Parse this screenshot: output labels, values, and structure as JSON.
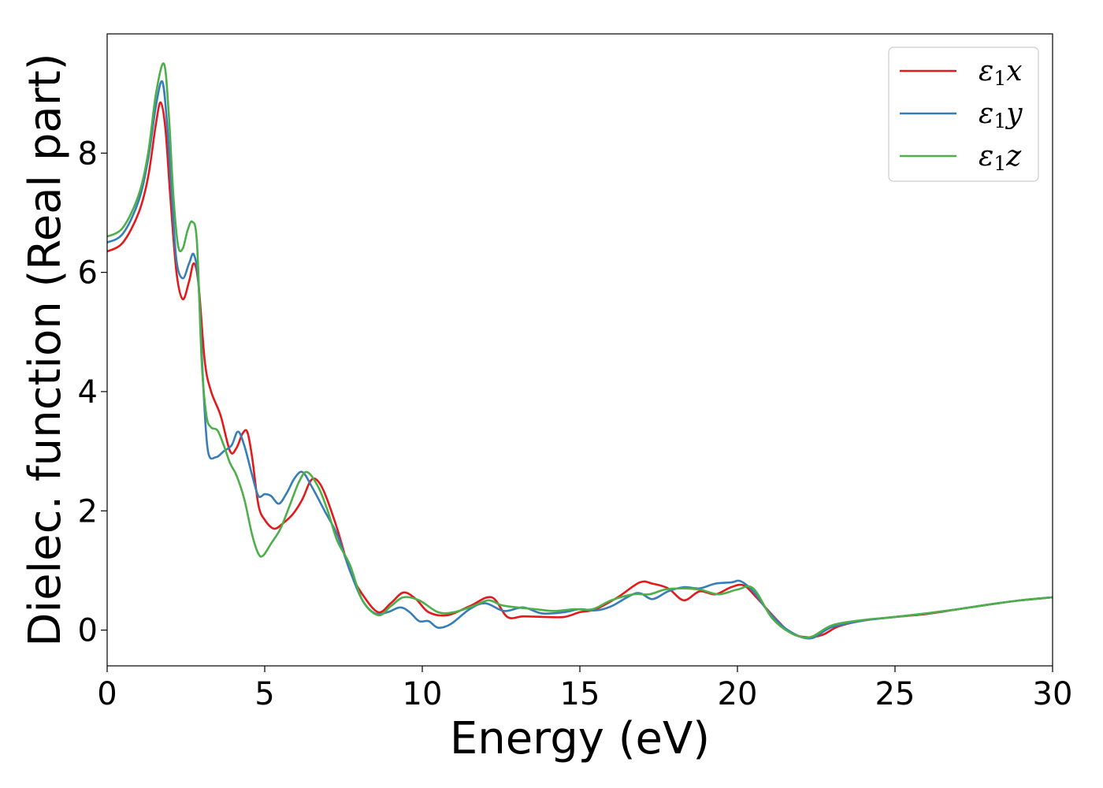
{
  "chart_data": {
    "type": "line",
    "xlabel": "Energy (eV)",
    "ylabel": "Dielec. function (Real part)",
    "xlim": [
      0,
      30
    ],
    "ylim": [
      -0.6,
      10.0
    ],
    "xticks": [
      0,
      5,
      10,
      15,
      20,
      25,
      30
    ],
    "yticks": [
      0,
      2,
      4,
      6,
      8
    ],
    "grid": false,
    "legend_position": "top-right",
    "series": [
      {
        "name": "ε1x",
        "legend_main": "ε",
        "legend_sub": "1",
        "legend_suffix": "x",
        "color": "#e31a1c",
        "x": [
          0,
          0.5,
          1.0,
          1.3,
          1.55,
          1.7,
          1.85,
          2.0,
          2.2,
          2.4,
          2.6,
          2.75,
          2.9,
          3.1,
          3.3,
          3.6,
          3.9,
          4.1,
          4.3,
          4.45,
          4.6,
          4.8,
          5.0,
          5.3,
          5.6,
          5.9,
          6.2,
          6.45,
          6.65,
          6.9,
          7.3,
          7.7,
          8.1,
          8.6,
          9.0,
          9.4,
          9.8,
          10.2,
          10.8,
          11.5,
          12.2,
          12.7,
          13.2,
          13.9,
          14.5,
          15.0,
          15.5,
          16.2,
          16.9,
          17.3,
          17.8,
          18.3,
          18.8,
          19.3,
          19.8,
          20.2,
          20.6,
          21.2,
          21.7,
          22.2,
          22.7,
          23.2,
          24.0,
          25.0,
          26.0,
          27.0,
          28.0,
          29.0,
          30.0
        ],
        "y": [
          6.35,
          6.5,
          7.0,
          7.6,
          8.5,
          8.85,
          8.4,
          7.3,
          6.0,
          5.55,
          5.85,
          6.15,
          5.8,
          4.5,
          4.0,
          3.6,
          3.0,
          3.05,
          3.3,
          3.32,
          2.9,
          2.1,
          1.85,
          1.7,
          1.8,
          1.95,
          2.2,
          2.5,
          2.52,
          2.3,
          1.7,
          1.0,
          0.6,
          0.3,
          0.45,
          0.63,
          0.52,
          0.3,
          0.25,
          0.4,
          0.55,
          0.22,
          0.23,
          0.22,
          0.22,
          0.3,
          0.35,
          0.55,
          0.8,
          0.78,
          0.7,
          0.5,
          0.65,
          0.6,
          0.72,
          0.75,
          0.55,
          0.2,
          -0.05,
          -0.12,
          -0.08,
          0.06,
          0.16,
          0.22,
          0.27,
          0.35,
          0.43,
          0.5,
          0.55
        ]
      },
      {
        "name": "ε1y",
        "legend_main": "ε",
        "legend_sub": "1",
        "legend_suffix": "y",
        "color": "#377eb8",
        "x": [
          0,
          0.5,
          1.0,
          1.3,
          1.55,
          1.75,
          1.9,
          2.05,
          2.2,
          2.4,
          2.6,
          2.75,
          2.9,
          3.05,
          3.2,
          3.45,
          3.7,
          3.95,
          4.15,
          4.35,
          4.6,
          4.8,
          5.0,
          5.2,
          5.45,
          5.7,
          5.95,
          6.2,
          6.5,
          6.9,
          7.3,
          7.7,
          8.1,
          8.5,
          8.9,
          9.3,
          9.6,
          9.9,
          10.2,
          10.5,
          10.9,
          11.5,
          12.0,
          12.6,
          13.2,
          13.8,
          14.5,
          15.0,
          15.5,
          16.0,
          16.8,
          17.3,
          17.8,
          18.3,
          18.8,
          19.3,
          19.8,
          20.1,
          20.5,
          21.0,
          21.6,
          22.3,
          23.0,
          24.0,
          25.0,
          26.0,
          27.0,
          28.0,
          29.0,
          30.0
        ],
        "y": [
          6.5,
          6.65,
          7.2,
          7.9,
          8.8,
          9.2,
          8.5,
          7.3,
          6.2,
          5.9,
          6.15,
          6.3,
          5.8,
          4.1,
          3.0,
          2.9,
          3.0,
          3.1,
          3.33,
          3.1,
          2.6,
          2.25,
          2.28,
          2.25,
          2.12,
          2.3,
          2.55,
          2.65,
          2.4,
          2.0,
          1.6,
          1.0,
          0.5,
          0.28,
          0.3,
          0.38,
          0.3,
          0.15,
          0.15,
          0.04,
          0.1,
          0.35,
          0.45,
          0.32,
          0.38,
          0.28,
          0.3,
          0.35,
          0.33,
          0.4,
          0.62,
          0.52,
          0.65,
          0.72,
          0.7,
          0.78,
          0.8,
          0.82,
          0.65,
          0.3,
          0.0,
          -0.14,
          0.05,
          0.16,
          0.22,
          0.28,
          0.35,
          0.43,
          0.5,
          0.55
        ]
      },
      {
        "name": "ε1z",
        "legend_main": "ε",
        "legend_sub": "1",
        "legend_suffix": "z",
        "color": "#4daf4a",
        "x": [
          0,
          0.5,
          1.0,
          1.3,
          1.55,
          1.8,
          1.95,
          2.1,
          2.25,
          2.4,
          2.55,
          2.7,
          2.85,
          3.0,
          3.15,
          3.3,
          3.5,
          3.7,
          3.9,
          4.1,
          4.35,
          4.6,
          4.8,
          4.95,
          5.2,
          5.5,
          5.8,
          6.1,
          6.35,
          6.7,
          7.0,
          7.3,
          7.7,
          8.1,
          8.6,
          9.0,
          9.4,
          9.9,
          10.5,
          11.0,
          11.6,
          12.1,
          12.5,
          13.0,
          13.6,
          14.2,
          14.8,
          15.4,
          16.0,
          16.7,
          17.2,
          17.7,
          18.2,
          18.8,
          19.4,
          20.0,
          20.5,
          21.1,
          21.7,
          22.3,
          23.0,
          24.0,
          25.0,
          26.0,
          27.0,
          28.0,
          29.0,
          30.0
        ],
        "y": [
          6.6,
          6.75,
          7.3,
          8.0,
          9.0,
          9.5,
          8.7,
          7.3,
          6.45,
          6.4,
          6.7,
          6.85,
          6.5,
          4.5,
          3.6,
          3.4,
          3.35,
          3.1,
          2.8,
          2.6,
          2.2,
          1.6,
          1.28,
          1.25,
          1.45,
          1.7,
          2.1,
          2.5,
          2.65,
          2.4,
          2.0,
          1.5,
          1.1,
          0.5,
          0.25,
          0.4,
          0.55,
          0.5,
          0.3,
          0.3,
          0.4,
          0.5,
          0.42,
          0.38,
          0.35,
          0.32,
          0.35,
          0.35,
          0.5,
          0.6,
          0.6,
          0.68,
          0.7,
          0.68,
          0.6,
          0.68,
          0.7,
          0.2,
          -0.05,
          -0.12,
          0.08,
          0.17,
          0.22,
          0.28,
          0.35,
          0.43,
          0.5,
          0.55
        ]
      }
    ]
  }
}
